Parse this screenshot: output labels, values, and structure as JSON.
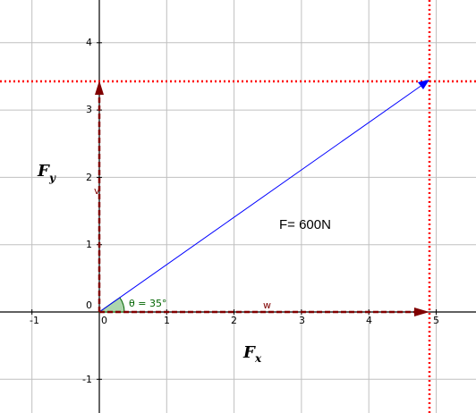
{
  "axes": {
    "x_ticks": [
      "-1",
      "0",
      "1",
      "2",
      "3",
      "4",
      "5"
    ],
    "y_ticks": [
      "4",
      "3",
      "2",
      "1",
      "-1"
    ],
    "origin_label": "0"
  },
  "force": {
    "label": "F= 600N",
    "magnitude_N": 600,
    "tip": [
      4.9,
      3.45
    ],
    "color": "#0000ff"
  },
  "components": {
    "fx_label": "F",
    "fx_sub": "x",
    "fy_label": "F",
    "fy_sub": "y",
    "w_label": "w",
    "v_label": "v",
    "color": "#800000"
  },
  "angle": {
    "label": "θ = 35°",
    "degrees": 35,
    "color": "#006400",
    "fill": "#9fcf9f"
  },
  "guide_lines": {
    "x": 4.9,
    "y": 3.45,
    "color": "#ff0000"
  }
}
